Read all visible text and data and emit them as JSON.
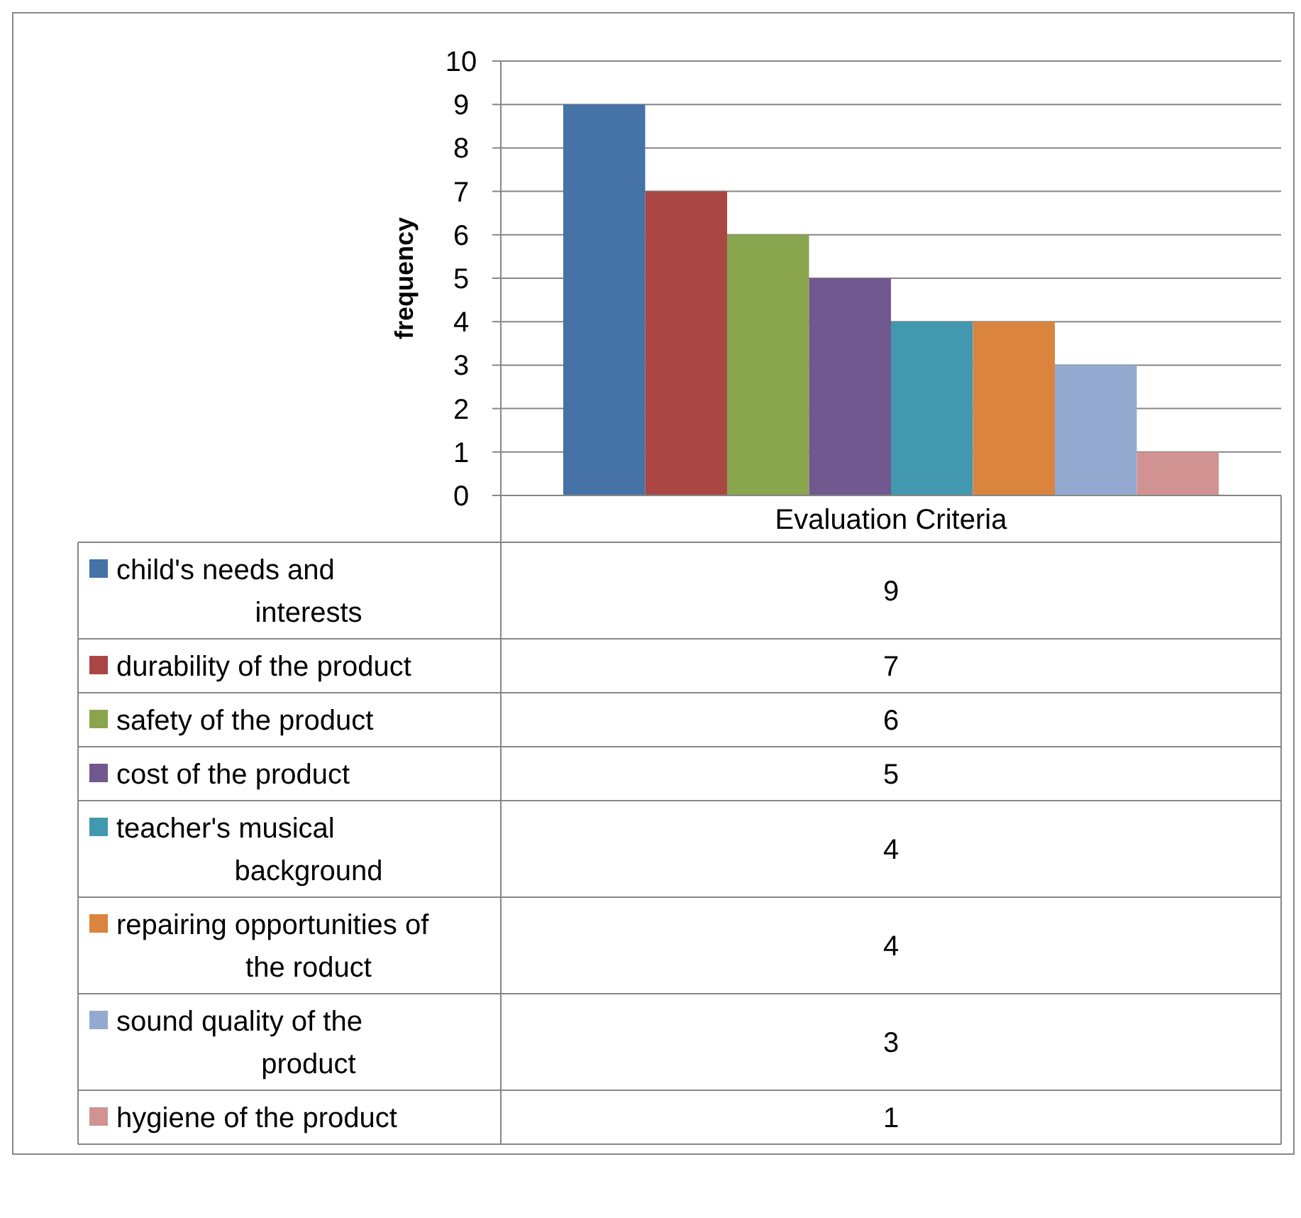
{
  "chart_data": {
    "type": "bar",
    "categories": [
      "Evaluation Criteria"
    ],
    "ylabel": "frequency",
    "ylim": [
      0,
      10
    ],
    "yticks": [
      0,
      1,
      2,
      3,
      4,
      5,
      6,
      7,
      8,
      9,
      10
    ],
    "grid": "y",
    "legend": "bottom",
    "annotations": [
      "9",
      "7",
      "6",
      "5",
      "4",
      "4",
      "3",
      "1"
    ],
    "series": [
      {
        "name": "child's needs and interests",
        "color": "#4572a7",
        "values": [
          9
        ]
      },
      {
        "name": "durability of the product",
        "color": "#aa4643",
        "values": [
          7
        ]
      },
      {
        "name": "safety of the product",
        "color": "#89a54e",
        "values": [
          6
        ]
      },
      {
        "name": "cost of the product",
        "color": "#71588f",
        "values": [
          5
        ]
      },
      {
        "name": "teacher's musical background",
        "color": "#4198af",
        "values": [
          4
        ]
      },
      {
        "name": "repairing opportunities of the roduct",
        "color": "#db843d",
        "values": [
          4
        ]
      },
      {
        "name": "sound quality of the product",
        "color": "#93a9cf",
        "values": [
          3
        ]
      },
      {
        "name": "hygiene of the product",
        "color": "#d19392",
        "values": [
          1
        ]
      }
    ]
  }
}
